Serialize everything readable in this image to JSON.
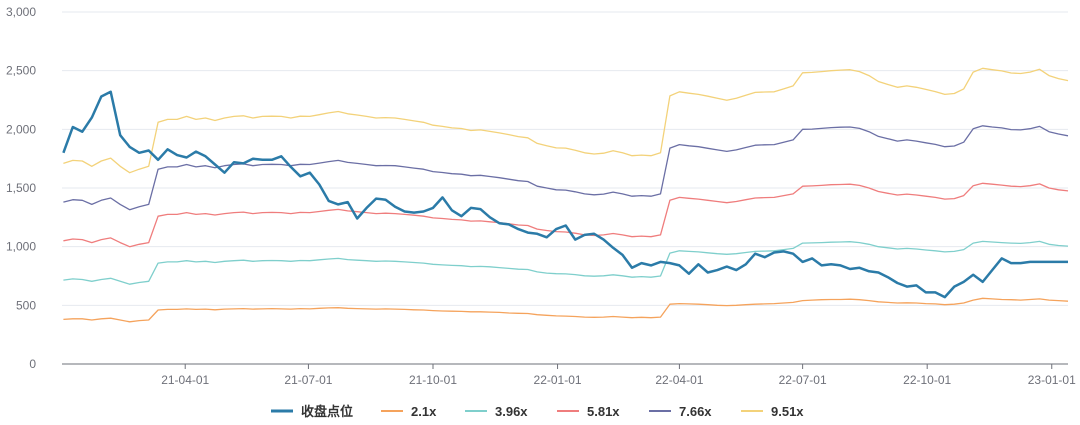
{
  "chart_data": {
    "type": "line",
    "title": "",
    "xlabel": "",
    "ylabel": "",
    "x_start": "2020-12-31",
    "x_end": "2023-01-13",
    "x_ticks": [
      "2021-04-01",
      "2021-07-01",
      "2021-10-01",
      "2022-01-01",
      "2022-04-01",
      "2022-07-01",
      "2022-10-01",
      "2023-01-01"
    ],
    "x_tick_labels": [
      "21-04-01",
      "21-07-01",
      "21-10-01",
      "22-01-01",
      "22-04-01",
      "22-07-01",
      "22-10-01",
      "23-01-01"
    ],
    "ylim": [
      0,
      3000
    ],
    "y_ticks": [
      0,
      500,
      1000,
      1500,
      2000,
      2500,
      3000
    ],
    "y_tick_labels": [
      "0",
      "500",
      "1,000",
      "1,500",
      "2,000",
      "2,500",
      "3,000"
    ],
    "grid": true,
    "legend_position": "bottom-center",
    "x": [
      "2021-01-01",
      "2021-01-08",
      "2021-01-15",
      "2021-01-22",
      "2021-01-29",
      "2021-02-05",
      "2021-02-12",
      "2021-02-19",
      "2021-02-26",
      "2021-03-05",
      "2021-03-12",
      "2021-03-19",
      "2021-03-26",
      "2021-04-02",
      "2021-04-09",
      "2021-04-16",
      "2021-04-23",
      "2021-04-30",
      "2021-05-07",
      "2021-05-14",
      "2021-05-21",
      "2021-05-28",
      "2021-06-04",
      "2021-06-11",
      "2021-06-18",
      "2021-06-25",
      "2021-07-02",
      "2021-07-09",
      "2021-07-16",
      "2021-07-23",
      "2021-07-30",
      "2021-08-06",
      "2021-08-13",
      "2021-08-20",
      "2021-08-27",
      "2021-09-03",
      "2021-09-10",
      "2021-09-17",
      "2021-09-24",
      "2021-10-01",
      "2021-10-08",
      "2021-10-15",
      "2021-10-22",
      "2021-10-29",
      "2021-11-05",
      "2021-11-12",
      "2021-11-19",
      "2021-11-26",
      "2021-12-03",
      "2021-12-10",
      "2021-12-17",
      "2021-12-24",
      "2021-12-31",
      "2022-01-07",
      "2022-01-14",
      "2022-01-21",
      "2022-01-28",
      "2022-02-04",
      "2022-02-11",
      "2022-02-18",
      "2022-02-25",
      "2022-03-04",
      "2022-03-11",
      "2022-03-18",
      "2022-03-25",
      "2022-04-01",
      "2022-04-08",
      "2022-04-15",
      "2022-04-22",
      "2022-04-29",
      "2022-05-06",
      "2022-05-13",
      "2022-05-20",
      "2022-05-27",
      "2022-06-03",
      "2022-06-10",
      "2022-06-17",
      "2022-06-24",
      "2022-07-01",
      "2022-07-08",
      "2022-07-15",
      "2022-07-22",
      "2022-07-29",
      "2022-08-05",
      "2022-08-12",
      "2022-08-19",
      "2022-08-26",
      "2022-09-02",
      "2022-09-09",
      "2022-09-16",
      "2022-09-23",
      "2022-09-30",
      "2022-10-07",
      "2022-10-14",
      "2022-10-21",
      "2022-10-28",
      "2022-11-04",
      "2022-11-11",
      "2022-11-18",
      "2022-11-25",
      "2022-12-02",
      "2022-12-09",
      "2022-12-16",
      "2022-12-23",
      "2022-12-30",
      "2023-01-06",
      "2023-01-13"
    ],
    "series": [
      {
        "name": "收盘点位",
        "color": "#2b7ba8",
        "bold": true,
        "values": [
          1800,
          2020,
          1980,
          2100,
          2280,
          2320,
          1950,
          1850,
          1800,
          1820,
          1740,
          1830,
          1780,
          1760,
          1810,
          1770,
          1700,
          1630,
          1720,
          1710,
          1750,
          1740,
          1740,
          1770,
          1680,
          1600,
          1630,
          1530,
          1390,
          1360,
          1380,
          1240,
          1330,
          1410,
          1400,
          1340,
          1300,
          1290,
          1300,
          1330,
          1420,
          1310,
          1260,
          1330,
          1320,
          1250,
          1200,
          1190,
          1150,
          1120,
          1110,
          1080,
          1150,
          1180,
          1060,
          1100,
          1110,
          1060,
          990,
          930,
          820,
          860,
          840,
          870,
          860,
          840,
          770,
          850,
          780,
          800,
          830,
          800,
          850,
          940,
          910,
          950,
          960,
          940,
          870,
          900,
          840,
          850,
          840,
          810,
          820,
          790,
          780,
          740,
          690,
          660,
          670,
          610,
          610,
          570,
          660,
          700,
          760,
          700,
          800,
          900,
          860,
          860,
          870,
          870,
          870,
          870,
          870
        ]
      },
      {
        "name": "2.1x",
        "color": "#f5a35c",
        "values": [
          380,
          385,
          385,
          375,
          385,
          390,
          375,
          360,
          370,
          375,
          460,
          465,
          465,
          470,
          465,
          468,
          462,
          468,
          470,
          472,
          468,
          470,
          472,
          470,
          468,
          472,
          470,
          475,
          478,
          480,
          475,
          472,
          470,
          468,
          470,
          468,
          465,
          462,
          460,
          455,
          452,
          450,
          448,
          445,
          445,
          442,
          440,
          435,
          432,
          430,
          420,
          415,
          410,
          408,
          405,
          400,
          398,
          400,
          405,
          400,
          395,
          398,
          395,
          400,
          510,
          515,
          512,
          510,
          505,
          500,
          498,
          500,
          505,
          510,
          512,
          515,
          520,
          525,
          540,
          545,
          548,
          550,
          550,
          552,
          548,
          540,
          530,
          525,
          520,
          522,
          520,
          515,
          512,
          505,
          510,
          520,
          545,
          560,
          555,
          550,
          548,
          545,
          550,
          555,
          545,
          540,
          535
        ]
      },
      {
        "name": "3.96x",
        "color": "#7fcfcc",
        "values": [
          715,
          725,
          720,
          705,
          720,
          730,
          705,
          680,
          695,
          705,
          860,
          870,
          870,
          880,
          870,
          875,
          865,
          875,
          880,
          885,
          875,
          880,
          882,
          880,
          875,
          882,
          880,
          888,
          895,
          900,
          890,
          885,
          880,
          875,
          878,
          875,
          870,
          865,
          860,
          850,
          845,
          840,
          838,
          830,
          832,
          828,
          822,
          815,
          808,
          805,
          785,
          775,
          770,
          768,
          762,
          752,
          748,
          752,
          760,
          752,
          740,
          745,
          740,
          750,
          945,
          965,
          960,
          955,
          948,
          940,
          935,
          940,
          950,
          960,
          962,
          965,
          975,
          985,
          1030,
          1032,
          1035,
          1038,
          1040,
          1042,
          1035,
          1020,
          1000,
          990,
          980,
          985,
          980,
          972,
          965,
          955,
          960,
          975,
          1030,
          1045,
          1040,
          1035,
          1030,
          1028,
          1035,
          1045,
          1020,
          1010,
          1005
        ]
      },
      {
        "name": "5.81x",
        "color": "#ef7d7d",
        "values": [
          1050,
          1065,
          1060,
          1035,
          1060,
          1075,
          1035,
          1000,
          1020,
          1035,
          1260,
          1275,
          1275,
          1290,
          1275,
          1282,
          1270,
          1282,
          1290,
          1295,
          1282,
          1290,
          1292,
          1290,
          1282,
          1292,
          1290,
          1300,
          1310,
          1318,
          1305,
          1298,
          1290,
          1282,
          1285,
          1282,
          1275,
          1268,
          1260,
          1245,
          1240,
          1232,
          1228,
          1218,
          1220,
          1212,
          1205,
          1195,
          1185,
          1180,
          1150,
          1138,
          1128,
          1125,
          1115,
          1100,
          1095,
          1100,
          1112,
          1100,
          1085,
          1090,
          1085,
          1100,
          1395,
          1420,
          1412,
          1405,
          1395,
          1385,
          1375,
          1385,
          1400,
          1415,
          1418,
          1420,
          1435,
          1450,
          1515,
          1518,
          1522,
          1528,
          1530,
          1532,
          1522,
          1500,
          1470,
          1455,
          1440,
          1448,
          1440,
          1430,
          1420,
          1405,
          1410,
          1435,
          1520,
          1540,
          1532,
          1525,
          1515,
          1512,
          1520,
          1535,
          1500,
          1485,
          1475
        ]
      },
      {
        "name": "7.66x",
        "color": "#6b6fa5",
        "values": [
          1380,
          1400,
          1395,
          1360,
          1395,
          1415,
          1360,
          1315,
          1340,
          1360,
          1660,
          1680,
          1680,
          1700,
          1680,
          1690,
          1672,
          1690,
          1700,
          1705,
          1690,
          1700,
          1702,
          1700,
          1690,
          1702,
          1700,
          1712,
          1725,
          1735,
          1718,
          1710,
          1700,
          1690,
          1692,
          1690,
          1680,
          1670,
          1660,
          1640,
          1632,
          1622,
          1618,
          1605,
          1608,
          1598,
          1588,
          1575,
          1562,
          1555,
          1515,
          1500,
          1485,
          1482,
          1468,
          1450,
          1442,
          1448,
          1465,
          1450,
          1430,
          1435,
          1430,
          1450,
          1840,
          1870,
          1860,
          1852,
          1838,
          1825,
          1812,
          1825,
          1845,
          1865,
          1868,
          1870,
          1890,
          1910,
          2000,
          2002,
          2008,
          2015,
          2018,
          2020,
          2008,
          1980,
          1940,
          1920,
          1900,
          1910,
          1900,
          1885,
          1872,
          1852,
          1858,
          1890,
          2005,
          2030,
          2020,
          2012,
          1998,
          1995,
          2005,
          2025,
          1980,
          1960,
          1945
        ]
      },
      {
        "name": "9.51x",
        "color": "#f3d27a",
        "values": [
          1710,
          1735,
          1730,
          1685,
          1730,
          1755,
          1685,
          1630,
          1660,
          1685,
          2060,
          2085,
          2085,
          2110,
          2085,
          2097,
          2075,
          2097,
          2110,
          2115,
          2097,
          2110,
          2112,
          2110,
          2097,
          2112,
          2110,
          2125,
          2140,
          2152,
          2132,
          2122,
          2110,
          2097,
          2100,
          2097,
          2085,
          2072,
          2060,
          2035,
          2025,
          2012,
          2007,
          1990,
          1995,
          1982,
          1970,
          1955,
          1938,
          1928,
          1880,
          1860,
          1842,
          1840,
          1822,
          1800,
          1790,
          1797,
          1818,
          1800,
          1775,
          1780,
          1775,
          1800,
          2285,
          2320,
          2308,
          2298,
          2282,
          2265,
          2248,
          2265,
          2290,
          2315,
          2318,
          2320,
          2345,
          2370,
          2482,
          2485,
          2492,
          2500,
          2505,
          2508,
          2492,
          2458,
          2408,
          2382,
          2358,
          2370,
          2358,
          2340,
          2322,
          2298,
          2305,
          2345,
          2488,
          2520,
          2508,
          2498,
          2480,
          2476,
          2488,
          2512,
          2458,
          2432,
          2415
        ]
      }
    ]
  }
}
